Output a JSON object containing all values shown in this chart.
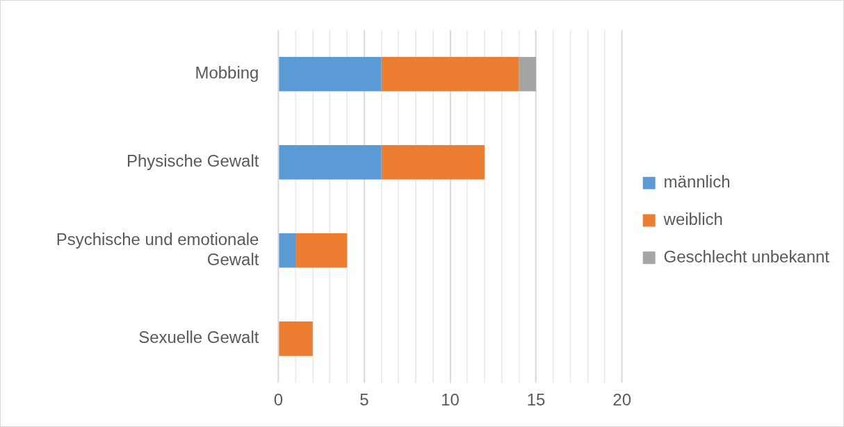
{
  "chart_data": {
    "type": "bar",
    "orientation": "horizontal",
    "stacked": true,
    "categories": [
      "Mobbing",
      "Physische Gewalt",
      "Psychische und emotionale Gewalt",
      "Sexuelle Gewalt"
    ],
    "series": [
      {
        "name": "männlich",
        "color": "#5b9bd5",
        "values": [
          6,
          6,
          1,
          0
        ]
      },
      {
        "name": "weiblich",
        "color": "#ed7d31",
        "values": [
          8,
          6,
          3,
          2
        ]
      },
      {
        "name": "Geschlecht unbekannt",
        "color": "#a5a5a5",
        "values": [
          1,
          0,
          0,
          0
        ]
      }
    ],
    "xlim": [
      0,
      20
    ],
    "xticks": [
      0,
      {
        "value": 1,
        "label": null
      },
      {
        "value": 2,
        "label": null
      },
      {
        "value": 3,
        "label": null
      },
      {
        "value": 4,
        "label": null
      },
      5,
      {
        "value": 6,
        "label": null
      },
      {
        "value": 7,
        "label": null
      },
      {
        "value": 8,
        "label": null
      },
      {
        "value": 9,
        "label": null
      },
      10,
      {
        "value": 11,
        "label": null
      },
      {
        "value": 12,
        "label": null
      },
      {
        "value": 13,
        "label": null
      },
      {
        "value": 14,
        "label": null
      },
      15,
      {
        "value": 16,
        "label": null
      },
      {
        "value": 17,
        "label": null
      },
      {
        "value": 18,
        "label": null
      },
      {
        "value": 19,
        "label": null
      },
      20
    ],
    "grid": "x",
    "legend": "right"
  }
}
